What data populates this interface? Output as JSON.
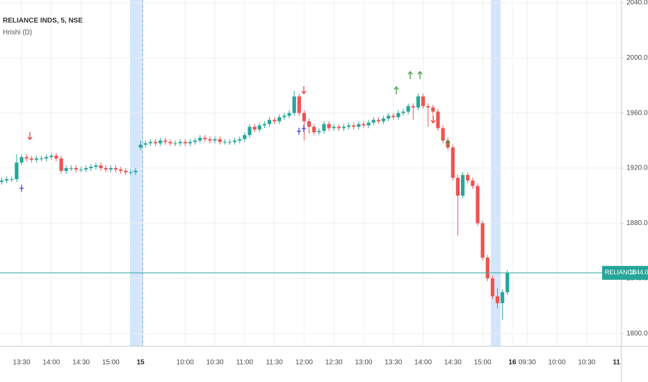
{
  "chart_data": {
    "type": "candlestick",
    "symbol": "RELIANCE INDS, 5, NSE",
    "indicator": "Hrishi (D)",
    "up_color": "#26a69a",
    "down_color": "#ef5350",
    "ylim": [
      1791,
      2042
    ],
    "yticks": [
      {
        "value": 1800,
        "label": "1800.00"
      },
      {
        "value": 1840,
        "label": "1840.00"
      },
      {
        "value": 1880,
        "label": "1880.00"
      },
      {
        "value": 1920,
        "label": "1920.00"
      },
      {
        "value": 1960,
        "label": "1960.00"
      },
      {
        "value": 2000,
        "label": "2000.00"
      },
      {
        "value": 2040,
        "label": "2040.00"
      }
    ],
    "grid": true,
    "last_price": {
      "value": 1844,
      "label": "1844.00"
    },
    "last_price_symbol": "RELIANCE",
    "categories": [
      null,
      null,
      null,
      null,
      "13:30",
      null,
      null,
      null,
      null,
      null,
      "14:00",
      null,
      null,
      null,
      null,
      null,
      "14:30",
      null,
      null,
      null,
      null,
      null,
      "15:00",
      null,
      null,
      null,
      null,
      null,
      "15",
      null,
      null,
      null,
      null,
      null,
      null,
      null,
      null,
      "10:00",
      null,
      null,
      null,
      null,
      null,
      "10:30",
      null,
      null,
      null,
      null,
      null,
      "11:00",
      null,
      null,
      null,
      null,
      null,
      "11:30",
      null,
      null,
      null,
      null,
      null,
      "12:00",
      null,
      null,
      null,
      null,
      null,
      "12:30",
      null,
      null,
      null,
      null,
      null,
      "13:00",
      null,
      null,
      null,
      null,
      null,
      "13:30",
      null,
      null,
      null,
      null,
      null,
      "14:00",
      null,
      null,
      null,
      null,
      null,
      "14:30",
      null,
      null,
      null,
      null,
      null,
      "15:00",
      null,
      null,
      null,
      null,
      null,
      "16",
      null,
      null,
      "09:30",
      null,
      null,
      null,
      null,
      null,
      "10:00",
      null,
      null,
      null,
      null,
      null,
      "10:30",
      null,
      null,
      null,
      null,
      null,
      "11"
    ],
    "ohlc": [
      [
        1910,
        1913,
        1908,
        1911
      ],
      [
        1911,
        1914,
        1909,
        1912
      ],
      [
        1912,
        1914,
        1910,
        1912
      ],
      [
        1912,
        1930,
        1910,
        1924
      ],
      [
        1924,
        1930,
        1922,
        1928
      ],
      [
        1928,
        1930,
        1925,
        1927
      ],
      [
        1927,
        1929,
        1924,
        1926
      ],
      [
        1926,
        1929,
        1924,
        1927
      ],
      [
        1927,
        1929,
        1925,
        1927
      ],
      [
        1927,
        1930,
        1925,
        1928
      ],
      [
        1928,
        1931,
        1926,
        1929
      ],
      [
        1929,
        1931,
        1925,
        1927
      ],
      [
        1927,
        1929,
        1916,
        1918
      ],
      [
        1918,
        1922,
        1916,
        1920
      ],
      [
        1920,
        1922,
        1918,
        1920
      ],
      [
        1920,
        1922,
        1917,
        1919
      ],
      [
        1919,
        1921,
        1917,
        1919
      ],
      [
        1919,
        1922,
        1917,
        1920
      ],
      [
        1920,
        1923,
        1918,
        1921
      ],
      [
        1921,
        1924,
        1919,
        1922
      ],
      [
        1922,
        1924,
        1918,
        1920
      ],
      [
        1920,
        1922,
        1917,
        1919
      ],
      [
        1919,
        1922,
        1917,
        1920
      ],
      [
        1920,
        1922,
        1917,
        1919
      ],
      [
        1919,
        1921,
        1916,
        1918
      ],
      [
        1918,
        1920,
        1915,
        1917
      ],
      [
        1917,
        1919,
        1915,
        1917
      ],
      [
        1917,
        1920,
        1915,
        1918
      ],
      [
        1935,
        1940,
        1933,
        1937
      ],
      [
        1937,
        1940,
        1935,
        1938
      ],
      [
        1938,
        1941,
        1936,
        1939
      ],
      [
        1939,
        1941,
        1936,
        1938
      ],
      [
        1938,
        1942,
        1936,
        1940
      ],
      [
        1940,
        1942,
        1937,
        1939
      ],
      [
        1939,
        1941,
        1936,
        1938
      ],
      [
        1938,
        1940,
        1936,
        1938
      ],
      [
        1938,
        1941,
        1936,
        1939
      ],
      [
        1939,
        1941,
        1936,
        1938
      ],
      [
        1938,
        1941,
        1936,
        1939
      ],
      [
        1939,
        1942,
        1937,
        1940
      ],
      [
        1940,
        1944,
        1938,
        1942
      ],
      [
        1942,
        1944,
        1939,
        1941
      ],
      [
        1941,
        1943,
        1938,
        1940
      ],
      [
        1940,
        1943,
        1938,
        1941
      ],
      [
        1941,
        1943,
        1937,
        1939
      ],
      [
        1939,
        1941,
        1937,
        1939
      ],
      [
        1939,
        1941,
        1937,
        1939
      ],
      [
        1939,
        1942,
        1937,
        1940
      ],
      [
        1940,
        1943,
        1938,
        1941
      ],
      [
        1941,
        1946,
        1939,
        1944
      ],
      [
        1944,
        1952,
        1942,
        1950
      ],
      [
        1950,
        1952,
        1946,
        1948
      ],
      [
        1948,
        1953,
        1946,
        1951
      ],
      [
        1951,
        1954,
        1949,
        1952
      ],
      [
        1952,
        1957,
        1950,
        1955
      ],
      [
        1955,
        1957,
        1952,
        1954
      ],
      [
        1954,
        1959,
        1952,
        1957
      ],
      [
        1957,
        1960,
        1955,
        1958
      ],
      [
        1958,
        1962,
        1956,
        1960
      ],
      [
        1960,
        1976,
        1958,
        1972
      ],
      [
        1972,
        1974,
        1958,
        1960
      ],
      [
        1960,
        1962,
        1940,
        1954
      ],
      [
        1954,
        1956,
        1945,
        1950
      ],
      [
        1950,
        1952,
        1944,
        1946
      ],
      [
        1946,
        1949,
        1944,
        1947
      ],
      [
        1947,
        1954,
        1945,
        1952
      ],
      [
        1952,
        1954,
        1947,
        1949
      ],
      [
        1949,
        1952,
        1947,
        1950
      ],
      [
        1950,
        1952,
        1947,
        1949
      ],
      [
        1949,
        1952,
        1947,
        1950
      ],
      [
        1950,
        1953,
        1948,
        1951
      ],
      [
        1951,
        1953,
        1948,
        1950
      ],
      [
        1950,
        1954,
        1948,
        1952
      ],
      [
        1952,
        1954,
        1949,
        1951
      ],
      [
        1951,
        1955,
        1949,
        1953
      ],
      [
        1953,
        1957,
        1951,
        1955
      ],
      [
        1955,
        1957,
        1952,
        1954
      ],
      [
        1954,
        1958,
        1952,
        1956
      ],
      [
        1956,
        1960,
        1954,
        1958
      ],
      [
        1958,
        1960,
        1955,
        1957
      ],
      [
        1957,
        1962,
        1955,
        1960
      ],
      [
        1960,
        1963,
        1958,
        1961
      ],
      [
        1961,
        1967,
        1959,
        1965
      ],
      [
        1965,
        1967,
        1955,
        1964
      ],
      [
        1964,
        1974,
        1962,
        1972
      ],
      [
        1972,
        1974,
        1963,
        1965
      ],
      [
        1965,
        1967,
        1950,
        1964
      ],
      [
        1964,
        1966,
        1959,
        1961
      ],
      [
        1961,
        1963,
        1947,
        1949
      ],
      [
        1949,
        1951,
        1938,
        1940
      ],
      [
        1940,
        1942,
        1933,
        1935
      ],
      [
        1935,
        1937,
        1911,
        1913
      ],
      [
        1913,
        1915,
        1871,
        1900
      ],
      [
        1900,
        1917,
        1898,
        1915
      ],
      [
        1915,
        1917,
        1909,
        1911
      ],
      [
        1911,
        1913,
        1905,
        1907
      ],
      [
        1907,
        1909,
        1878,
        1880
      ],
      [
        1880,
        1882,
        1853,
        1855
      ],
      [
        1855,
        1857,
        1838,
        1840
      ],
      [
        1840,
        1842,
        1825,
        1827
      ],
      [
        1827,
        1833,
        1818,
        1822
      ],
      [
        1822,
        1832,
        1810,
        1830
      ],
      [
        1830,
        1846,
        1828,
        1844
      ],
      null,
      null,
      null,
      null,
      null,
      null,
      null,
      null,
      null,
      null,
      null,
      null,
      null,
      null,
      null,
      null,
      null,
      null,
      null,
      null,
      null,
      null
    ]
  }
}
